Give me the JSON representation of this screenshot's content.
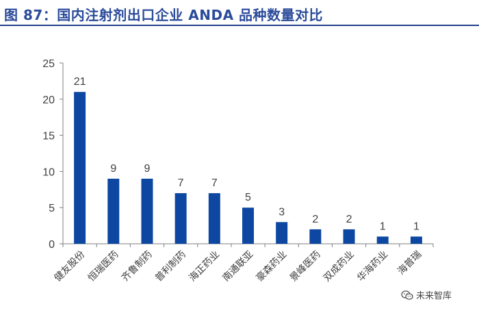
{
  "title": "图 87：国内注射剂出口企业 ANDA 品种数量对比",
  "colors": {
    "bar": "#0e47a1",
    "title": "#2a4a9a",
    "axis": "#7f7f7f",
    "text": "#404040"
  },
  "watermark": {
    "icon": "wechat-icon",
    "text": "未来智库"
  },
  "chart_data": {
    "type": "bar",
    "title": "图 87：国内注射剂出口企业 ANDA 品种数量对比",
    "xlabel": "",
    "ylabel": "",
    "categories": [
      "健友股份",
      "恒瑞医药",
      "齐鲁制药",
      "普利制药",
      "海正药业",
      "南通联亚",
      "豪森药业",
      "景峰医药",
      "双成药业",
      "华海药业",
      "海普瑞"
    ],
    "values": [
      21,
      9,
      9,
      7,
      7,
      5,
      3,
      2,
      2,
      1,
      1
    ],
    "ylim": [
      0,
      25
    ],
    "yticks": [
      0,
      5,
      10,
      15,
      20,
      25
    ],
    "grid": false,
    "legend": "none",
    "data_labels": true
  }
}
